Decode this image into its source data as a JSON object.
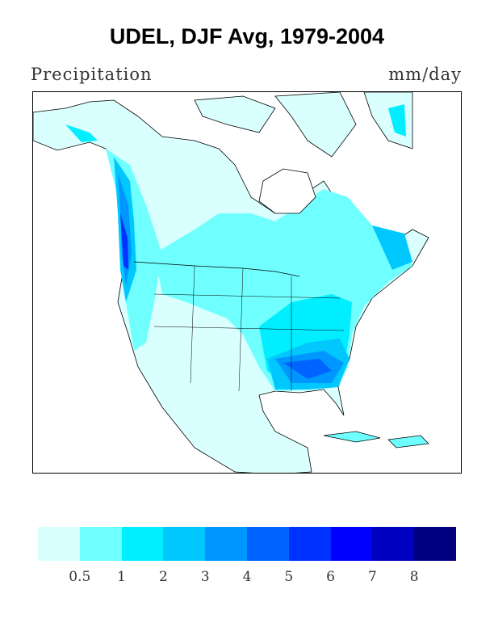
{
  "title": "UDEL, DJF Avg, 1979-2004",
  "left_label": "Precipitation",
  "right_label": "mm/day",
  "colorbar": {
    "colors": [
      "#d9ffff",
      "#70ffff",
      "#00eeff",
      "#00c8ff",
      "#0096ff",
      "#0064ff",
      "#0032ff",
      "#0000ff",
      "#0000c0",
      "#000080"
    ],
    "labels": [
      "0.5",
      "1",
      "2",
      "3",
      "4",
      "5",
      "6",
      "7",
      "8"
    ]
  }
}
